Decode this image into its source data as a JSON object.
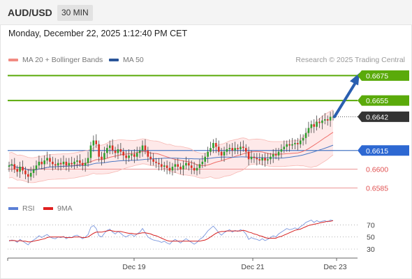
{
  "header": {
    "symbol": "AUD/USD",
    "timeframe": "30 MIN",
    "datetime": "Monday, December 22, 2025 1:12:40 PM CET"
  },
  "legend": {
    "bollinger": {
      "label": "MA 20 + Bollinger Bands",
      "color": "#f28b82"
    },
    "ma50": {
      "label": "MA 50",
      "color": "#2a5599"
    },
    "copyright": "Research © 2025 Trading Central"
  },
  "rsi_legend": {
    "rsi": {
      "label": "RSI",
      "color": "#5b7fd6"
    },
    "ma9": {
      "label": "9MA",
      "color": "#e02020"
    }
  },
  "colors": {
    "bull": "#2e9e2e",
    "bear": "#d93025",
    "resistance": "#5aaa0a",
    "support": "#e05050",
    "pivot": "#4a78c4",
    "current": "#333333",
    "arrow": "#2a5fb0",
    "band_fill": "#fde2e2"
  },
  "chart_data": [
    {
      "type": "candlestick",
      "x_tick_labels": [
        "Dec 19",
        "Dec 21",
        "Dec 23"
      ],
      "y_range": [
        0.6578,
        0.6683
      ],
      "levels": [
        {
          "value": "0.6675",
          "kind": "resistance"
        },
        {
          "value": "0.6655",
          "kind": "resistance"
        },
        {
          "value": "0.6642",
          "kind": "current"
        },
        {
          "value": "0.6615",
          "kind": "pivot"
        },
        {
          "value": "0.6600",
          "kind": "support"
        },
        {
          "value": "0.6585",
          "kind": "support"
        }
      ],
      "arrow": {
        "direction": "up",
        "from": 0.6642,
        "to": 0.6675
      },
      "closes": [
        0.6603,
        0.6604,
        0.66,
        0.6598,
        0.6602,
        0.6599,
        0.6596,
        0.6594,
        0.6597,
        0.66,
        0.6603,
        0.6606,
        0.6604,
        0.6607,
        0.6609,
        0.6606,
        0.6604,
        0.6603,
        0.6605,
        0.6604,
        0.6606,
        0.6603,
        0.6605,
        0.6604,
        0.6606,
        0.6607,
        0.6605,
        0.6603,
        0.6605,
        0.6609,
        0.6619,
        0.6623,
        0.662,
        0.661,
        0.6608,
        0.6613,
        0.6617,
        0.6619,
        0.6615,
        0.6613,
        0.6616,
        0.6614,
        0.6611,
        0.6609,
        0.6611,
        0.6612,
        0.661,
        0.6613,
        0.6615,
        0.6619,
        0.6615,
        0.661,
        0.6608,
        0.6606,
        0.6605,
        0.6604,
        0.6602,
        0.6603,
        0.6601,
        0.6599,
        0.6602,
        0.6604,
        0.6602,
        0.66,
        0.6603,
        0.6605,
        0.6603,
        0.6601,
        0.6599,
        0.6601,
        0.6604,
        0.6606,
        0.661,
        0.6614,
        0.6617,
        0.6621,
        0.6618,
        0.6614,
        0.6611,
        0.6614,
        0.6616,
        0.6617,
        0.6615,
        0.6617,
        0.6616,
        0.6618,
        0.6617,
        0.6614,
        0.6608,
        0.661,
        0.6609,
        0.6608,
        0.6607,
        0.6609,
        0.6607,
        0.6608,
        0.661,
        0.6612,
        0.6611,
        0.6614,
        0.6616,
        0.6618,
        0.662,
        0.6619,
        0.662,
        0.6621,
        0.662,
        0.6623,
        0.6625,
        0.6629,
        0.6633,
        0.6636,
        0.6634,
        0.6638,
        0.6637,
        0.6639,
        0.664,
        0.6639,
        0.6642,
        0.6642
      ]
    },
    {
      "type": "line",
      "title": "RSI",
      "y_range": [
        22,
        82
      ],
      "y_tick_labels": [
        "70",
        "50",
        "30"
      ],
      "y_ticks": [
        70,
        50,
        30
      ],
      "series": [
        {
          "name": "RSI",
          "values": [
            43,
            45,
            44,
            41,
            46,
            43,
            40,
            37,
            42,
            45,
            48,
            52,
            49,
            52,
            54,
            50,
            48,
            47,
            50,
            49,
            51,
            47,
            50,
            49,
            52,
            53,
            50,
            47,
            50,
            54,
            66,
            69,
            64,
            52,
            50,
            56,
            61,
            63,
            58,
            55,
            59,
            56,
            52,
            50,
            53,
            54,
            51,
            55,
            58,
            64,
            57,
            50,
            47,
            45,
            44,
            43,
            41,
            43,
            40,
            38,
            43,
            46,
            43,
            40,
            44,
            47,
            44,
            41,
            38,
            41,
            46,
            49,
            54,
            60,
            64,
            68,
            63,
            57,
            53,
            57,
            60,
            62,
            58,
            61,
            59,
            62,
            60,
            55,
            46,
            49,
            47,
            46,
            44,
            47,
            44,
            46,
            49,
            52,
            50,
            55,
            58,
            61,
            64,
            62,
            63,
            65,
            63,
            67,
            70,
            74,
            76,
            78,
            74,
            77,
            75,
            76,
            77,
            75,
            78,
            77
          ]
        },
        {
          "name": "9MA",
          "values": [
            44,
            44,
            44,
            43,
            44,
            43,
            43,
            42,
            42,
            43,
            44,
            45,
            46,
            47,
            49,
            50,
            50,
            50,
            50,
            50,
            50,
            49,
            49,
            49,
            50,
            50,
            50,
            49,
            49,
            50,
            53,
            56,
            58,
            58,
            58,
            59,
            60,
            61,
            60,
            59,
            59,
            59,
            58,
            57,
            56,
            56,
            55,
            55,
            56,
            57,
            57,
            56,
            55,
            53,
            52,
            50,
            48,
            46,
            44,
            43,
            43,
            43,
            43,
            43,
            43,
            43,
            43,
            43,
            43,
            43,
            43,
            44,
            45,
            47,
            50,
            53,
            56,
            58,
            59,
            59,
            60,
            60,
            60,
            60,
            60,
            60,
            61,
            60,
            58,
            57,
            55,
            54,
            52,
            51,
            49,
            48,
            48,
            48,
            48,
            50,
            51,
            53,
            55,
            57,
            59,
            61,
            62,
            63,
            65,
            67,
            69,
            70,
            71,
            72,
            73,
            74,
            75,
            76,
            76,
            77
          ]
        }
      ]
    }
  ]
}
